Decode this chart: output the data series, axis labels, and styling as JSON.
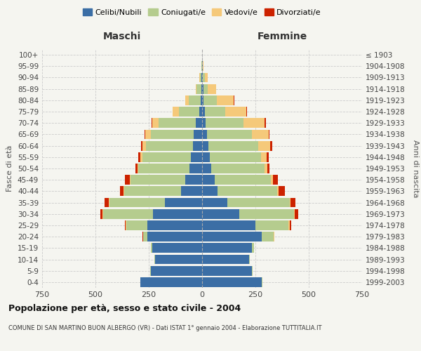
{
  "age_groups": [
    "0-4",
    "5-9",
    "10-14",
    "15-19",
    "20-24",
    "25-29",
    "30-34",
    "35-39",
    "40-44",
    "45-49",
    "50-54",
    "55-59",
    "60-64",
    "65-69",
    "70-74",
    "75-79",
    "80-84",
    "85-89",
    "90-94",
    "95-99",
    "100+"
  ],
  "birth_years": [
    "1999-2003",
    "1994-1998",
    "1989-1993",
    "1984-1988",
    "1979-1983",
    "1974-1978",
    "1969-1973",
    "1964-1968",
    "1959-1963",
    "1954-1958",
    "1949-1953",
    "1944-1948",
    "1939-1943",
    "1934-1938",
    "1929-1933",
    "1924-1928",
    "1919-1923",
    "1914-1918",
    "1909-1913",
    "1904-1908",
    "≤ 1903"
  ],
  "colors": {
    "celibi": "#3b6ea5",
    "coniugati": "#b5cc8e",
    "vedovi": "#f5c97a",
    "divorziati": "#cc2200"
  },
  "males": {
    "celibi": [
      290,
      240,
      220,
      235,
      255,
      255,
      230,
      175,
      100,
      80,
      58,
      53,
      43,
      40,
      30,
      14,
      8,
      4,
      3,
      1,
      0
    ],
    "coniugati": [
      0,
      2,
      3,
      5,
      20,
      100,
      235,
      260,
      265,
      255,
      240,
      225,
      220,
      200,
      175,
      95,
      55,
      22,
      8,
      2,
      0
    ],
    "vedovi": [
      0,
      0,
      0,
      0,
      2,
      2,
      2,
      2,
      2,
      5,
      5,
      10,
      15,
      25,
      30,
      30,
      15,
      5,
      2,
      0,
      0
    ],
    "divorziati": [
      0,
      0,
      0,
      0,
      2,
      5,
      10,
      20,
      18,
      22,
      10,
      10,
      8,
      5,
      2,
      0,
      0,
      0,
      0,
      0,
      0
    ]
  },
  "females": {
    "nubili": [
      280,
      235,
      220,
      235,
      280,
      250,
      175,
      120,
      72,
      58,
      42,
      35,
      28,
      22,
      18,
      12,
      8,
      5,
      4,
      2,
      0
    ],
    "coniugate": [
      2,
      3,
      5,
      10,
      55,
      155,
      255,
      290,
      280,
      265,
      250,
      240,
      235,
      210,
      175,
      95,
      60,
      20,
      8,
      1,
      0
    ],
    "vedove": [
      0,
      0,
      0,
      0,
      3,
      5,
      5,
      5,
      8,
      10,
      15,
      28,
      55,
      80,
      100,
      100,
      80,
      40,
      15,
      3,
      0
    ],
    "divorziate": [
      0,
      0,
      0,
      0,
      2,
      8,
      15,
      22,
      28,
      22,
      8,
      10,
      12,
      5,
      5,
      5,
      2,
      0,
      0,
      0,
      0
    ]
  },
  "title": "Popolazione per età, sesso e stato civile - 2004",
  "subtitle": "COMUNE DI SAN MARTINO BUON ALBERGO (VR) - Dati ISTAT 1° gennaio 2004 - Elaborazione TUTTITALIA.IT",
  "xlabel_left": "Maschi",
  "xlabel_right": "Femmine",
  "ylabel_left": "Fasce di età",
  "ylabel_right": "Anni di nascita",
  "xlim": 750,
  "legend_labels": [
    "Celibi/Nubili",
    "Coniugati/e",
    "Vedovi/e",
    "Divorziati/e"
  ],
  "background_color": "#f5f5f0"
}
